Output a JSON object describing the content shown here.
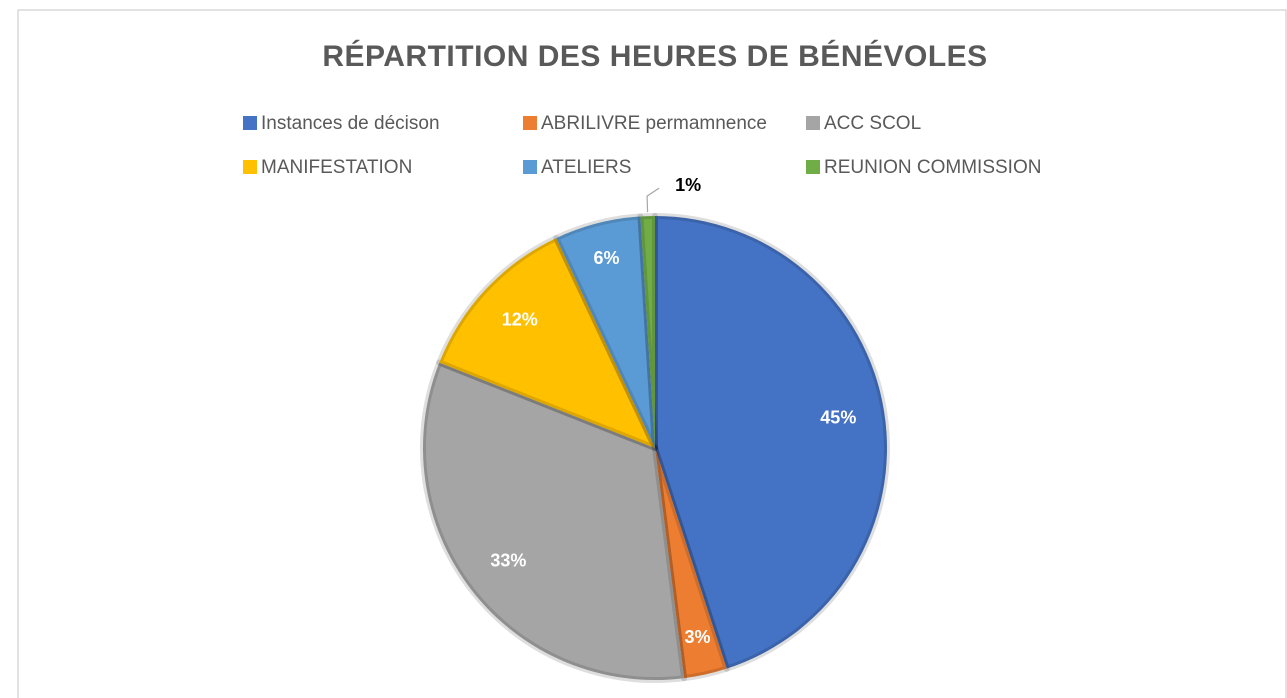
{
  "chart_data": {
    "type": "pie",
    "title": "RÉPARTITION DES HEURES DE BÉNÉVOLES",
    "categories": [
      "Instances de décison",
      "ABRILIVRE permamnence",
      "ACC SCOL",
      "MANIFESTATION",
      "ATELIERS",
      "REUNION COMMISSION"
    ],
    "values": [
      45,
      3,
      33,
      12,
      6,
      1
    ],
    "value_labels": [
      "45%",
      "3%",
      "33%",
      "12%",
      "6%",
      "1%"
    ],
    "colors": [
      "#4472c4",
      "#ed7d31",
      "#a5a5a5",
      "#ffc000",
      "#5b9bd5",
      "#70ad47"
    ]
  }
}
